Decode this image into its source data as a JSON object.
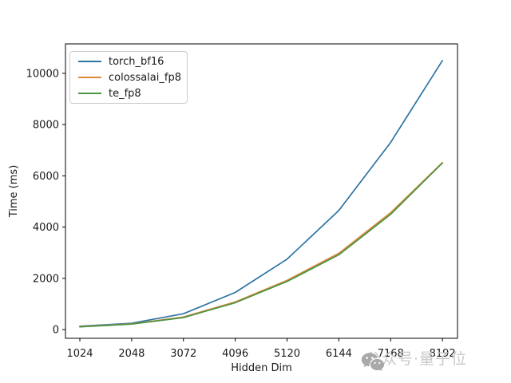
{
  "chart_data": {
    "type": "line",
    "title": "",
    "xlabel": "Hidden Dim",
    "ylabel": "Time (ms)",
    "x": [
      1024,
      2048,
      3072,
      4096,
      5120,
      6144,
      7168,
      8192
    ],
    "xticks": [
      "1024",
      "2048",
      "3072",
      "4096",
      "5120",
      "6144",
      "7168",
      "8192"
    ],
    "yticks": [
      0,
      2000,
      4000,
      6000,
      8000,
      10000
    ],
    "ytick_labels": [
      "0",
      "2000",
      "4000",
      "6000",
      "8000",
      "10000"
    ],
    "xlim": [
      740,
      8490
    ],
    "ylim": [
      -340,
      11150
    ],
    "grid": false,
    "legend_position": "upper left",
    "series": [
      {
        "name": "torch_bf16",
        "color": "#2d74a4",
        "values": [
          130,
          250,
          620,
          1450,
          2750,
          4650,
          7300,
          10500
        ]
      },
      {
        "name": "colossalai_fp8",
        "color": "#dd8a3a",
        "values": [
          115,
          225,
          490,
          1080,
          1920,
          2980,
          4560,
          6520
        ]
      },
      {
        "name": "te_fp8",
        "color": "#4a9341",
        "values": [
          105,
          215,
          470,
          1050,
          1880,
          2920,
          4500,
          6500
        ]
      }
    ]
  },
  "legend": {
    "entries": [
      "torch_bf16",
      "colossalai_fp8",
      "te_fp8"
    ]
  },
  "watermark": {
    "text": "公众号·量子位",
    "icon": "wechat-icon",
    "text_color": "#c8c8c8",
    "icon_color": "#a9a9a9"
  },
  "style": {
    "spine_color": "#000000",
    "background": "#ffffff"
  }
}
